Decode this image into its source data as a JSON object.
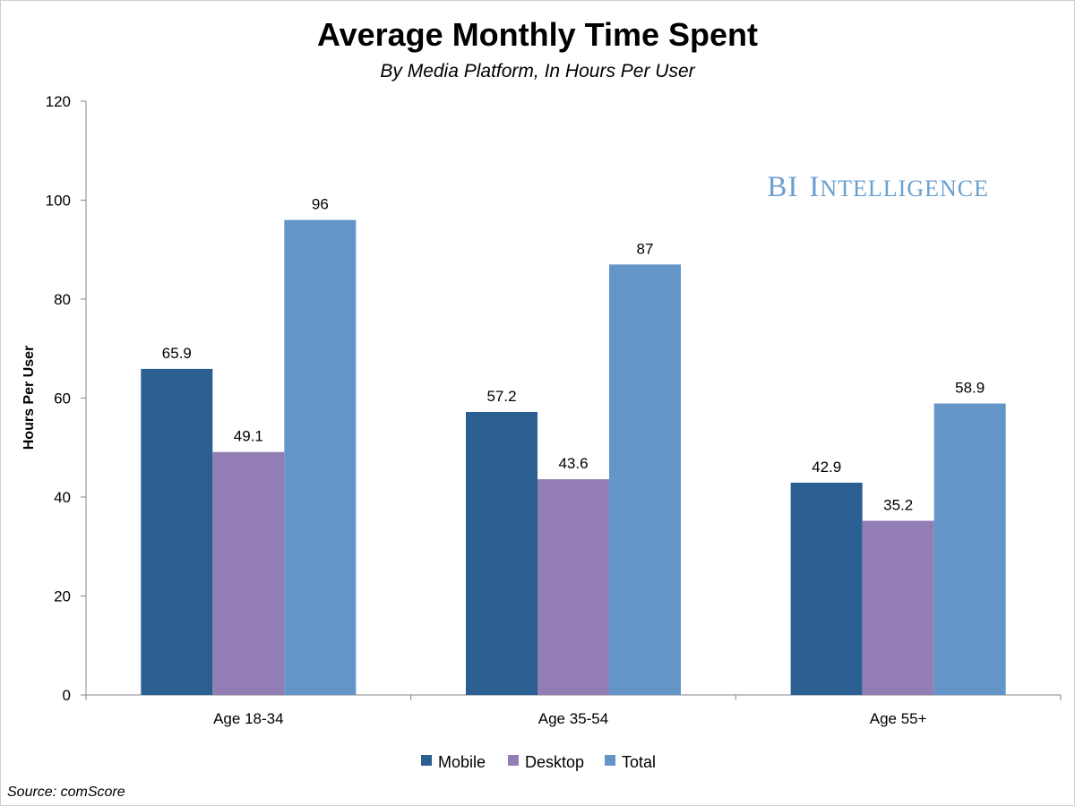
{
  "title": "Average Monthly Time Spent",
  "subtitle": "By Media Platform, In Hours Per User",
  "source": "Source: comScore",
  "watermark": {
    "prefix": "BI",
    "word_initial": "I",
    "word_rest": "NTELLIGENCE",
    "color": "#6a9fd1"
  },
  "chart_data": {
    "type": "bar",
    "categories": [
      "Age 18-34",
      "Age 35-54",
      "Age 55+"
    ],
    "series": [
      {
        "name": "Mobile",
        "values": [
          65.9,
          57.2,
          42.9
        ],
        "labels": [
          "65.9",
          "57.2",
          "42.9"
        ],
        "color": "#2b5f92"
      },
      {
        "name": "Desktop",
        "values": [
          49.1,
          43.6,
          35.2
        ],
        "labels": [
          "49.1",
          "43.6",
          "35.2"
        ],
        "color": "#927db4"
      },
      {
        "name": "Total",
        "values": [
          96,
          87,
          58.9
        ],
        "labels": [
          "96",
          "87",
          "58.9"
        ],
        "color": "#6395c9"
      }
    ],
    "ylabel": "Hours Per User",
    "xlabel": "",
    "ylim": [
      0,
      120
    ],
    "yticks": [
      0,
      20,
      40,
      60,
      80,
      100,
      120
    ],
    "grid": false,
    "legend_position": "bottom-center"
  }
}
